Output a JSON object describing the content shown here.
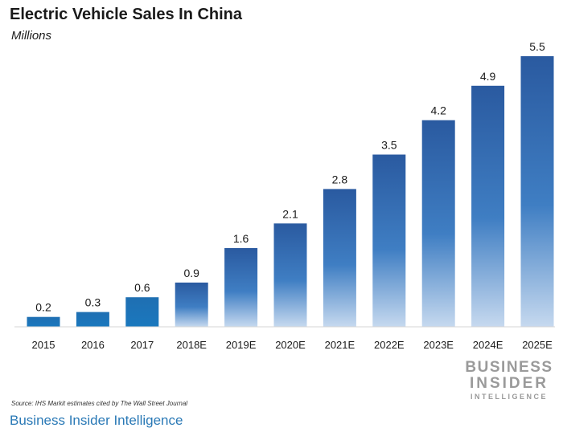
{
  "chart_data": {
    "type": "bar",
    "title": "Electric Vehicle Sales In China",
    "subtitle": "Millions",
    "xlabel": "",
    "ylabel": "",
    "categories": [
      "2015",
      "2016",
      "2017",
      "2018E",
      "2019E",
      "2020E",
      "2021E",
      "2022E",
      "2023E",
      "2024E",
      "2025E"
    ],
    "values": [
      0.2,
      0.3,
      0.6,
      0.9,
      1.6,
      2.1,
      2.8,
      3.5,
      4.2,
      4.9,
      5.5
    ],
    "value_labels": [
      "0.2",
      "0.3",
      "0.6",
      "0.9",
      "1.6",
      "2.1",
      "2.8",
      "3.5",
      "4.2",
      "4.9",
      "5.5"
    ],
    "ylim": [
      0,
      5.5
    ],
    "grid": false,
    "legend": "none",
    "source": "Source: IHS Markit estimates cited by The Wall Street Journal",
    "colors": {
      "actual_top": "#1f6fb2",
      "actual_bottom": "#1a78be",
      "forecast_top": "#2a5aa0",
      "forecast_bottom": "#c6d9ef"
    }
  },
  "branding": {
    "logo_line1": "BUSINESS",
    "logo_line2": "INSIDER",
    "logo_line3": "INTELLIGENCE"
  },
  "footer": {
    "caption": "Business Insider Intelligence"
  }
}
